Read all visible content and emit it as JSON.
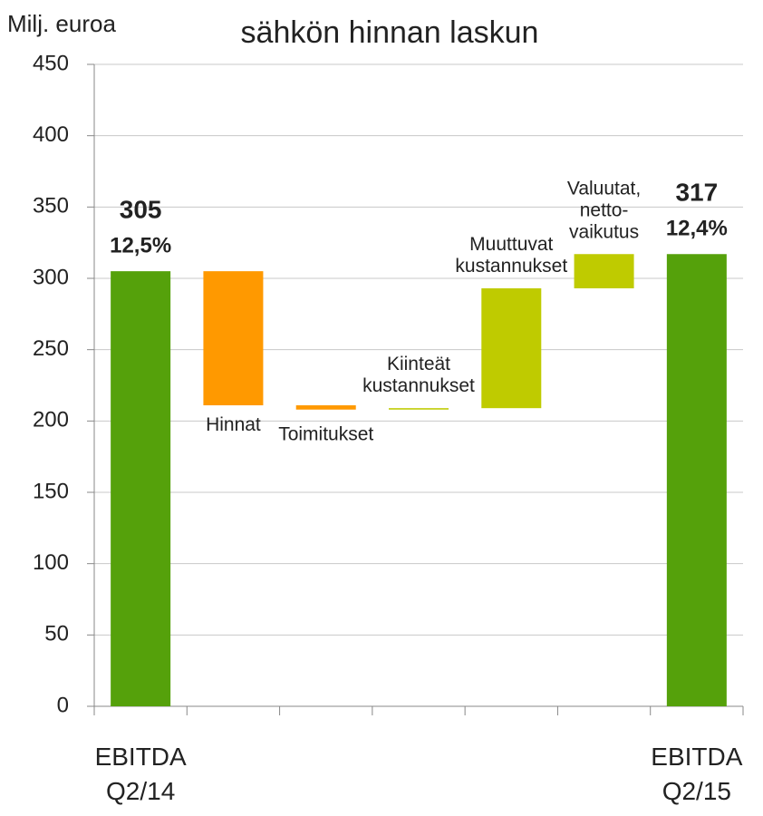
{
  "chart_data": {
    "type": "waterfall",
    "title": "sähkön hinnan laskun",
    "y_label": "Milj. euroa",
    "categories": [
      [
        "EBITDA",
        "Q2/14"
      ],
      [
        "Hinnat"
      ],
      [
        "Toimitukset"
      ],
      [
        "Kiinteät",
        "kustannukset"
      ],
      [
        "Muuttuvat",
        "kustannukset"
      ],
      [
        "Valuutat,",
        "netto-",
        "vaikutus"
      ],
      [
        "EBITDA",
        "Q2/15"
      ]
    ],
    "values": [
      305,
      -94,
      -3,
      1,
      84,
      24,
      317
    ],
    "measure": [
      "total",
      "relative",
      "relative",
      "relative",
      "relative",
      "relative",
      "total"
    ],
    "annotations": [
      {
        "category": 0,
        "text": "12,5%"
      },
      {
        "category": 6,
        "text": "12,4%"
      }
    ],
    "colors": {
      "total": "#55a10b",
      "decrease": "#ff9900",
      "increase": "#bfcb00"
    },
    "ylim": [
      0,
      450
    ],
    "yticks": [
      0,
      50,
      100,
      150,
      200,
      250,
      300,
      350,
      400,
      450
    ],
    "grid": true
  }
}
